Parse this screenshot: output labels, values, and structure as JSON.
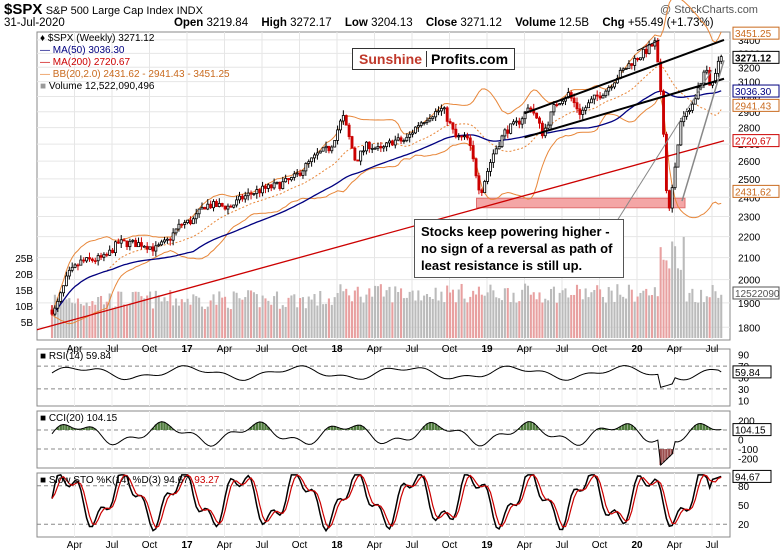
{
  "header": {
    "symbol": "$SPX",
    "name": "S&P 500 Large Cap Index",
    "exchange": "INDX",
    "date": "31-Jul-2020",
    "open_label": "Open",
    "open": "3219.84",
    "high_label": "High",
    "high": "3272.17",
    "low_label": "Low",
    "low": "3204.13",
    "close_label": "Close",
    "close": "3271.12",
    "volume_label": "Volume",
    "volume": "12.5B",
    "chg_label": "Chg",
    "chg": "+55.49 (+1.73%)",
    "watermark": "@ StockCharts.com"
  },
  "legend": {
    "price": "$SPX (Weekly) 3271.12",
    "ma50": "MA(50) 3036.30",
    "ma200": "MA(200) 2720.67",
    "bb": "BB(20,2.0) 2431.62 - 2941.43 - 3451.25",
    "volume": "Volume 12,522,090,496"
  },
  "logo": {
    "part1": "Sunshine",
    "part2": "Profits.com"
  },
  "annotation": "Stocks keep powering higher - no sign of a reversal as path of least resistance is still up.",
  "colors": {
    "candle_up": "#000000",
    "candle_down": "#cc0000",
    "ma50": "#000080",
    "ma200": "#cc0000",
    "bb": "#e8873a",
    "volume_down": "#e8a0a0",
    "volume_up": "#bbbbbb",
    "support_zone": "#f4a6a6",
    "rsi_fill_up": "#4e7a3c",
    "cci_fill_down": "#9b4e4e"
  },
  "chart_data": [
    {
      "type": "candlestick",
      "title": "$SPX S&P 500 Large Cap Index INDX",
      "timeframe": "Weekly",
      "x_tick_labels": [
        "Apr",
        "Jul",
        "Oct",
        "17",
        "Apr",
        "Jul",
        "Oct",
        "18",
        "Apr",
        "Jul",
        "Oct",
        "19",
        "Apr",
        "Jul",
        "Oct",
        "20",
        "Apr",
        "Jul"
      ],
      "y_tick_labels": [
        "3400",
        "3300",
        "3200",
        "3100",
        "3000",
        "2900",
        "2800",
        "2700",
        "2600",
        "2500",
        "2400",
        "2300",
        "2200",
        "2100",
        "2000",
        "1900",
        "1800"
      ],
      "ylim": [
        1750,
        3460
      ],
      "volume_tick_labels": [
        "25B",
        "20B",
        "15B",
        "10B",
        "5B"
      ],
      "price_path": [
        [
          "2016-02",
          1870
        ],
        [
          "2016-03",
          2020
        ],
        [
          "2016-04",
          2080
        ],
        [
          "2016-06",
          2100
        ],
        [
          "2016-07",
          2170
        ],
        [
          "2016-09",
          2165
        ],
        [
          "2016-10",
          2140
        ],
        [
          "2016-11",
          2180
        ],
        [
          "2016-12",
          2260
        ],
        [
          "2017-01",
          2280
        ],
        [
          "2017-02",
          2360
        ],
        [
          "2017-04",
          2350
        ],
        [
          "2017-05",
          2400
        ],
        [
          "2017-06",
          2430
        ],
        [
          "2017-08",
          2470
        ],
        [
          "2017-09",
          2500
        ],
        [
          "2017-10",
          2570
        ],
        [
          "2017-11",
          2640
        ],
        [
          "2017-12",
          2680
        ],
        [
          "2018-01",
          2870
        ],
        [
          "2018-02",
          2600
        ],
        [
          "2018-03",
          2700
        ],
        [
          "2018-04",
          2660
        ],
        [
          "2018-05",
          2720
        ],
        [
          "2018-06",
          2720
        ],
        [
          "2018-07",
          2820
        ],
        [
          "2018-08",
          2880
        ],
        [
          "2018-09",
          2920
        ],
        [
          "2018-10",
          2740
        ],
        [
          "2018-11",
          2730
        ],
        [
          "2018-12",
          2420
        ],
        [
          "2019-01",
          2640
        ],
        [
          "2019-02",
          2780
        ],
        [
          "2019-03",
          2830
        ],
        [
          "2019-04",
          2940
        ],
        [
          "2019-05",
          2760
        ],
        [
          "2019-06",
          2950
        ],
        [
          "2019-07",
          3020
        ],
        [
          "2019-08",
          2890
        ],
        [
          "2019-09",
          2980
        ],
        [
          "2019-10",
          3040
        ],
        [
          "2019-11",
          3140
        ],
        [
          "2019-12",
          3230
        ],
        [
          "2020-01",
          3300
        ],
        [
          "2020-02",
          3380
        ],
        [
          "2020-02b",
          2950
        ],
        [
          "2020-03",
          2300
        ],
        [
          "2020-03b",
          2500
        ],
        [
          "2020-04",
          2830
        ],
        [
          "2020-05",
          2950
        ],
        [
          "2020-06",
          3190
        ],
        [
          "2020-06b",
          3050
        ],
        [
          "2020-07",
          3270
        ]
      ],
      "series": [
        {
          "name": "MA(50)",
          "last": 3036.3
        },
        {
          "name": "MA(200)",
          "last": 2720.67
        },
        {
          "name": "BB(20,2.0)",
          "values": [
            2431.62,
            2941.43,
            3451.25
          ]
        },
        {
          "name": "Volume",
          "last": 12522090496
        }
      ],
      "annotations": [
        {
          "text": "Stocks keep powering higher - no sign of a reversal as path of least resistance is still up."
        },
        {
          "type": "support_zone",
          "y_range": [
            2345,
            2395
          ]
        },
        {
          "type": "rising_channel",
          "from": "2019-04",
          "to": "2020-07"
        }
      ],
      "price_flags": [
        {
          "label": "3451.25",
          "value": 3451.25
        },
        {
          "label": "3271.12",
          "value": 3271.12
        },
        {
          "label": "3036.30",
          "value": 3036.3
        },
        {
          "label": "2941.43",
          "value": 2941.43
        },
        {
          "label": "2720.67",
          "value": 2720.67
        },
        {
          "label": "2431.62",
          "value": 2431.62
        },
        {
          "label": "12522090",
          "value": 12522090
        }
      ]
    },
    {
      "type": "line",
      "title": "RSI(14) 59.84",
      "y_tick_labels": [
        "90",
        "70",
        "50",
        "30",
        "10"
      ],
      "ylim": [
        0,
        100
      ],
      "reference_lines": [
        70,
        30
      ],
      "last": 59.84,
      "flag": "59.84"
    },
    {
      "type": "line",
      "title": "CCI(20) 104.15",
      "y_tick_labels": [
        "200",
        "100",
        "0",
        "-100",
        "-200"
      ],
      "ylim": [
        -300,
        300
      ],
      "reference_lines": [
        100,
        -100
      ],
      "last": 104.15,
      "flag": "104.15"
    },
    {
      "type": "line",
      "title": "Slow STO %K(14) %D(3) 94.67, 93.27",
      "title_prefix": "Slow STO %K(14) %D(3) 94.67,",
      "title_d": "93.27",
      "y_tick_labels": [
        "80",
        "50",
        "20"
      ],
      "ylim": [
        0,
        100
      ],
      "reference_lines": [
        80,
        20
      ],
      "series": [
        {
          "name": "%K",
          "last": 94.67
        },
        {
          "name": "%D",
          "last": 93.27
        }
      ],
      "flag": "94.67",
      "x_tick_labels": [
        "Apr",
        "Jul",
        "Oct",
        "17",
        "Apr",
        "Jul",
        "Oct",
        "18",
        "Apr",
        "Jul",
        "Oct",
        "19",
        "Apr",
        "Jul",
        "Oct",
        "20",
        "Apr",
        "Jul"
      ]
    }
  ]
}
